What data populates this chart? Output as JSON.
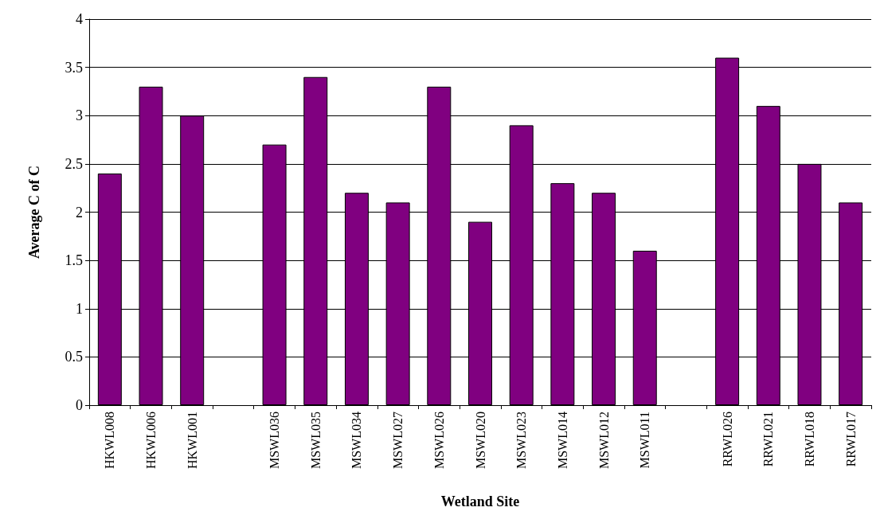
{
  "chart_data": {
    "type": "bar",
    "xlabel": "Wetland Site",
    "ylabel": "Average C of C",
    "categories": [
      "HKWL008",
      "HKWL006",
      "HKWL001",
      null,
      "MSWL036",
      "MSWL035",
      "MSWL034",
      "MSWL027",
      "MSWL026",
      "MSWL020",
      "MSWL023",
      "MSWL014",
      "MSWL012",
      "MSWL011",
      null,
      "RRWL026",
      "RRWL021",
      "RRWL018",
      "RRWL017"
    ],
    "values": [
      2.4,
      3.3,
      3.0,
      null,
      2.7,
      3.4,
      2.2,
      2.1,
      3.3,
      1.9,
      2.9,
      2.3,
      2.2,
      1.6,
      null,
      3.6,
      3.1,
      2.5,
      2.1
    ],
    "color": "#800080",
    "ylim": [
      0,
      4
    ],
    "yticks": [
      0,
      0.5,
      1,
      1.5,
      2,
      2.5,
      3,
      3.5,
      4
    ],
    "grid": "y"
  }
}
